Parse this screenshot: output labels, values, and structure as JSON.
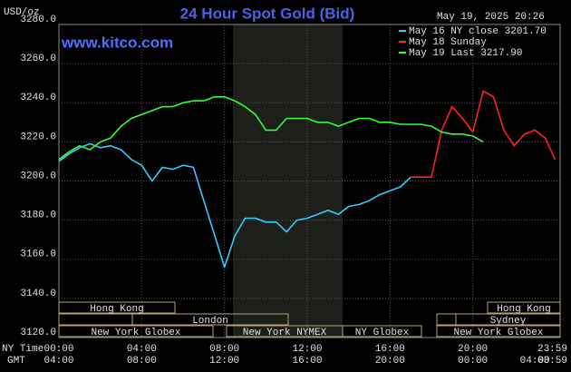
{
  "chart_data": {
    "type": "line",
    "title": "24 Hour Spot Gold (Bid)",
    "y_unit": "USD/oz",
    "timestamp": "May 19, 2025 20:26",
    "website": "www.kitco.com",
    "x_row_labels": [
      "NY Time",
      "GMT"
    ],
    "xlim": [
      0,
      24
    ],
    "ylim": [
      3120,
      3280
    ],
    "yticks": [
      {
        "value": 3120,
        "label": "3120.0"
      },
      {
        "value": 3140,
        "label": "3140.0"
      },
      {
        "value": 3160,
        "label": "3160.0"
      },
      {
        "value": 3180,
        "label": "3180.0"
      },
      {
        "value": 3200,
        "label": "3200.0"
      },
      {
        "value": 3220,
        "label": "3220.0"
      },
      {
        "value": 3240,
        "label": "3240.0"
      },
      {
        "value": 3260,
        "label": "3260.0"
      },
      {
        "value": 3280,
        "label": "3280.0"
      }
    ],
    "xticks": [
      {
        "value": 0,
        "label": "00:00"
      },
      {
        "value": 4,
        "label": "04:00"
      },
      {
        "value": 8,
        "label": "08:00"
      },
      {
        "value": 12,
        "label": "12:00"
      },
      {
        "value": 16,
        "label": "16:00"
      },
      {
        "value": 20,
        "label": "20:00"
      },
      {
        "value": 23.9833,
        "label": "23:59"
      }
    ],
    "xticks_gmt": [
      "04:00",
      "08:00",
      "12:00",
      "16:00",
      "20:00",
      "00:00",
      "04:00",
      "03:59"
    ],
    "grid": true,
    "sessions": [
      "Hong Kong",
      "London",
      "New York Globex",
      "New York NYMEX",
      "NY Globex",
      "Hong Kong",
      "Sydney",
      "New York Globex"
    ],
    "series": [
      {
        "name": "May 16 NY close 3201.70",
        "color": "#33ccff",
        "x": [
          0,
          0.5,
          1,
          1.5,
          2,
          2.5,
          3,
          3.5,
          4,
          4.5,
          5,
          5.5,
          6,
          6.5,
          7,
          7.5,
          8,
          8.5,
          9,
          9.5,
          10,
          10.5,
          11,
          11.5,
          12,
          12.5,
          13,
          13.5,
          14,
          14.5,
          15,
          15.5,
          16,
          16.5,
          17
        ],
        "values": [
          3210,
          3214,
          3217,
          3219,
          3217,
          3218,
          3216,
          3211,
          3208,
          3200,
          3207,
          3206,
          3208,
          3207,
          3190,
          3173,
          3156,
          3172,
          3181,
          3181,
          3179,
          3179,
          3174,
          3180,
          3181,
          3183,
          3185,
          3183,
          3187,
          3188,
          3190,
          3193,
          3195,
          3197,
          3202
        ]
      },
      {
        "name": "May 18 Sunday",
        "color": "#ff2020",
        "x": [
          17,
          17.5,
          18,
          18.5,
          19,
          19.5,
          20,
          20.5,
          21,
          21.5,
          22,
          22.5,
          23,
          23.5,
          23.98
        ],
        "values": [
          3202,
          3202,
          3202,
          3226,
          3238,
          3232,
          3225,
          3246,
          3243,
          3226,
          3218,
          3224,
          3226,
          3222,
          3211
        ]
      },
      {
        "name": "May 19 Last 3217.90",
        "color": "#33ff33",
        "x": [
          0,
          0.5,
          1,
          1.5,
          2,
          2.5,
          3,
          3.5,
          4,
          4.5,
          5,
          5.5,
          6,
          6.5,
          7,
          7.5,
          8,
          8.5,
          9,
          9.5,
          10,
          10.5,
          11,
          11.5,
          12,
          12.5,
          13,
          13.5,
          14,
          14.5,
          15,
          15.5,
          16,
          16.5,
          17,
          17.5,
          18,
          18.5,
          19,
          19.5,
          20,
          20.5
        ],
        "values": [
          3211,
          3215,
          3218,
          3216,
          3220,
          3222,
          3228,
          3232,
          3234,
          3236,
          3238,
          3238,
          3240,
          3241,
          3241,
          3243,
          3243,
          3241,
          3238,
          3234,
          3226,
          3226,
          3232,
          3232,
          3232,
          3230,
          3230,
          3228,
          3230,
          3232,
          3232,
          3230,
          3230,
          3229,
          3229,
          3229,
          3228,
          3225,
          3224,
          3224,
          3223,
          3220
        ]
      }
    ]
  }
}
